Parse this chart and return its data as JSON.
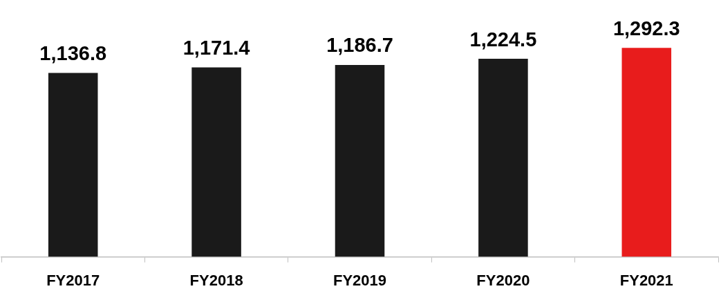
{
  "chart_data": {
    "type": "bar",
    "categories": [
      "FY2017",
      "FY2018",
      "FY2019",
      "FY2020",
      "FY2021"
    ],
    "values": [
      1136.8,
      1171.4,
      1186.7,
      1224.5,
      1292.3
    ],
    "colors": [
      "#1a1a1a",
      "#1a1a1a",
      "#1a1a1a",
      "#1a1a1a",
      "#e81c1c"
    ],
    "value_labels": [
      "1,136.8",
      "1,171.4",
      "1,186.7",
      "1,224.5",
      "1,292.3"
    ],
    "tick_labels": "x",
    "grid": false,
    "legend": false
  }
}
